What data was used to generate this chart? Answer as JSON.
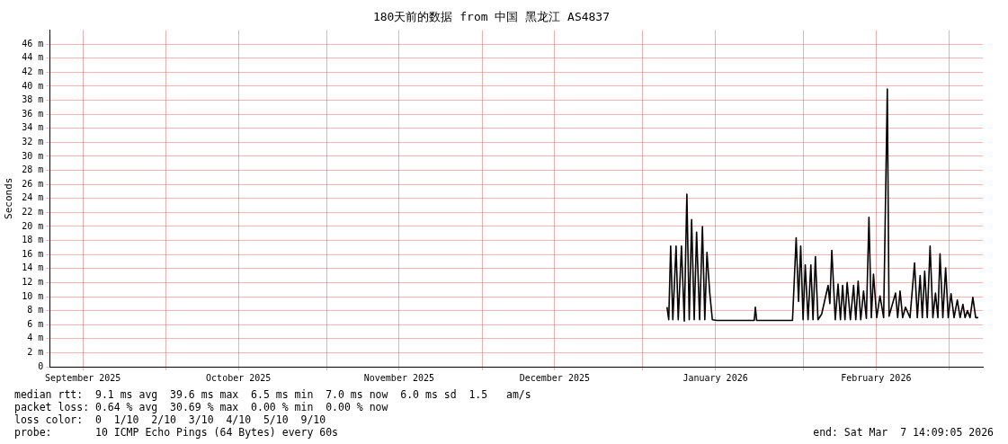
{
  "chart_data": {
    "type": "line",
    "title": "180天前的数据 from 中国 黑龙江 AS4837",
    "ylabel": "Seconds",
    "xlim": [
      "2025-09-08T14:09",
      "2026-03-07T14:09"
    ],
    "xticks": [
      {
        "value": "2025-09-15",
        "label": "September 2025"
      },
      {
        "value": "2025-10-01",
        "label": null
      },
      {
        "value": "2025-10-15",
        "label": "October 2025"
      },
      {
        "value": "2025-11-01",
        "label": null
      },
      {
        "value": "2025-11-15",
        "label": "November 2025"
      },
      {
        "value": "2025-12-01",
        "label": null
      },
      {
        "value": "2025-12-15",
        "label": "December 2025"
      },
      {
        "value": "2026-01-01",
        "label": null
      },
      {
        "value": "2026-01-15",
        "label": "January 2026"
      },
      {
        "value": "2026-02-01",
        "label": null
      },
      {
        "value": "2026-02-15",
        "label": "February 2026"
      },
      {
        "value": "2026-03-01",
        "label": null
      }
    ],
    "ylim": [
      0,
      48
    ],
    "yticks": [
      0,
      {
        "value": 2,
        "label": "2 m"
      },
      {
        "value": 4,
        "label": "4 m"
      },
      {
        "value": 6,
        "label": "6 m"
      },
      {
        "value": 8,
        "label": "8 m"
      },
      {
        "value": 10,
        "label": "10 m"
      },
      {
        "value": 12,
        "label": "12 m"
      },
      {
        "value": 14,
        "label": "14 m"
      },
      {
        "value": 16,
        "label": "16 m"
      },
      {
        "value": 18,
        "label": "18 m"
      },
      {
        "value": 20,
        "label": "20 m"
      },
      {
        "value": 22,
        "label": "22 m"
      },
      {
        "value": 24,
        "label": "24 m"
      },
      {
        "value": 26,
        "label": "26 m"
      },
      {
        "value": 28,
        "label": "28 m"
      },
      {
        "value": 30,
        "label": "30 m"
      },
      {
        "value": 32,
        "label": "32 m"
      },
      {
        "value": 34,
        "label": "34 m"
      },
      {
        "value": 36,
        "label": "36 m"
      },
      {
        "value": 38,
        "label": "38 m"
      },
      {
        "value": 40,
        "label": "40 m"
      },
      {
        "value": 42,
        "label": "42 m"
      },
      {
        "value": 44,
        "label": "44 m"
      },
      {
        "value": 46,
        "label": "46 m"
      }
    ],
    "grid": true,
    "legend": false,
    "marker": "none",
    "line_style": "solid",
    "x": [
      "2026-01-05T16:00",
      "2026-01-06T00:00",
      "2026-01-06T09:00",
      "2026-01-06T19:00",
      "2026-01-07T10:00",
      "2026-01-07T20:00",
      "2026-01-08T11:00",
      "2026-01-09T00:00",
      "2026-01-09T12:00",
      "2026-01-09T23:00",
      "2026-01-10T10:00",
      "2026-01-10T22:00",
      "2026-01-11T09:00",
      "2026-01-11T23:00",
      "2026-01-12T12:00",
      "2026-01-12T23:00",
      "2026-01-13T09:00",
      "2026-01-13T22:00",
      "2026-01-14T10:00",
      "2026-01-15T07:00",
      "2026-01-18T20:00",
      "2026-01-22T12:00",
      "2026-01-22T17:00",
      "2026-01-22T23:00",
      "2026-01-29T21:00",
      "2026-01-30T14:00",
      "2026-01-31T01:00",
      "2026-01-31T11:00",
      "2026-01-31T22:00",
      "2026-02-01T08:00",
      "2026-02-01T21:00",
      "2026-02-02T10:00",
      "2026-02-02T20:00",
      "2026-02-03T07:00",
      "2026-02-03T19:00",
      "2026-02-04T12:00",
      "2026-02-05T18:00",
      "2026-02-06T02:00",
      "2026-02-06T11:00",
      "2026-02-07T03:00",
      "2026-02-07T16:00",
      "2026-02-08T03:00",
      "2026-02-08T13:00",
      "2026-02-09T00:00",
      "2026-02-09T10:00",
      "2026-02-10T01:00",
      "2026-02-10T16:00",
      "2026-02-11T02:00",
      "2026-02-11T13:00",
      "2026-02-12T01:00",
      "2026-02-12T14:00",
      "2026-02-13T03:00",
      "2026-02-13T15:00",
      "2026-02-14T02:00",
      "2026-02-14T12:00",
      "2026-02-15T03:00",
      "2026-02-15T18:00",
      "2026-02-16T11:00",
      "2026-02-17T04:00",
      "2026-02-17T12:00",
      "2026-02-18T18:00",
      "2026-02-19T04:00",
      "2026-02-19T15:00",
      "2026-02-20T03:00",
      "2026-02-20T16:00",
      "2026-02-21T13:00",
      "2026-02-22T10:00",
      "2026-02-22T23:00",
      "2026-02-23T12:00",
      "2026-02-23T22:00",
      "2026-02-24T09:00",
      "2026-02-24T21:00",
      "2026-02-25T10:00",
      "2026-02-25T23:00",
      "2026-02-26T11:00",
      "2026-02-26T22:00",
      "2026-02-27T08:00",
      "2026-02-27T21:00",
      "2026-02-28T10:00",
      "2026-02-28T22:00",
      "2026-03-01T11:00",
      "2026-03-02T01:00",
      "2026-03-02T16:00",
      "2026-03-03T05:00",
      "2026-03-03T18:00",
      "2026-03-04T04:00",
      "2026-03-04T15:00",
      "2026-03-05T03:00",
      "2026-03-05T16:00",
      "2026-03-06T05:00",
      "2026-03-06T17:00"
    ],
    "series": [
      {
        "color": "#000000",
        "values": [
          8.5,
          6.7,
          17.2,
          6.7,
          17.2,
          6.7,
          17.2,
          6.5,
          24.6,
          6.7,
          21.0,
          6.7,
          19.2,
          6.7,
          20.0,
          6.7,
          16.3,
          10.5,
          6.7,
          6.6,
          6.6,
          6.6,
          8.5,
          6.6,
          6.6,
          18.4,
          9.3,
          17.2,
          6.7,
          14.5,
          6.7,
          14.5,
          6.7,
          15.7,
          6.7,
          7.5,
          11.6,
          9.0,
          16.6,
          6.7,
          11.8,
          6.7,
          11.6,
          6.7,
          12.0,
          6.7,
          11.6,
          6.7,
          12.2,
          6.7,
          10.8,
          6.9,
          21.3,
          7.0,
          13.2,
          7.0,
          10.1,
          7.0,
          39.6,
          7.2,
          10.5,
          7.0,
          10.8,
          7.0,
          8.5,
          7.0,
          14.8,
          7.0,
          13.0,
          7.0,
          13.6,
          7.0,
          17.2,
          7.0,
          10.5,
          7.0,
          16.1,
          7.0,
          14.1,
          7.0,
          10.4,
          7.0,
          9.5,
          7.0,
          8.9,
          7.0,
          8.0,
          7.0,
          9.9,
          7.0,
          7.0
        ]
      }
    ],
    "annotations": [
      "median rtt:  9.1 ms avg  39.6 ms max  6.5 ms min  7.0 ms now  6.0 ms sd  1.5   am/s",
      "packet loss: 0.64 % avg  30.69 % max  0.00 % min  0.00 % now",
      "loss color:  0  1/10  2/10  3/10  4/10  5/10  9/10",
      "probe:       10 ICMP Echo Pings (64 Bytes) every 60s",
      "end: Sat Mar  7 14:09:05 2026"
    ]
  }
}
